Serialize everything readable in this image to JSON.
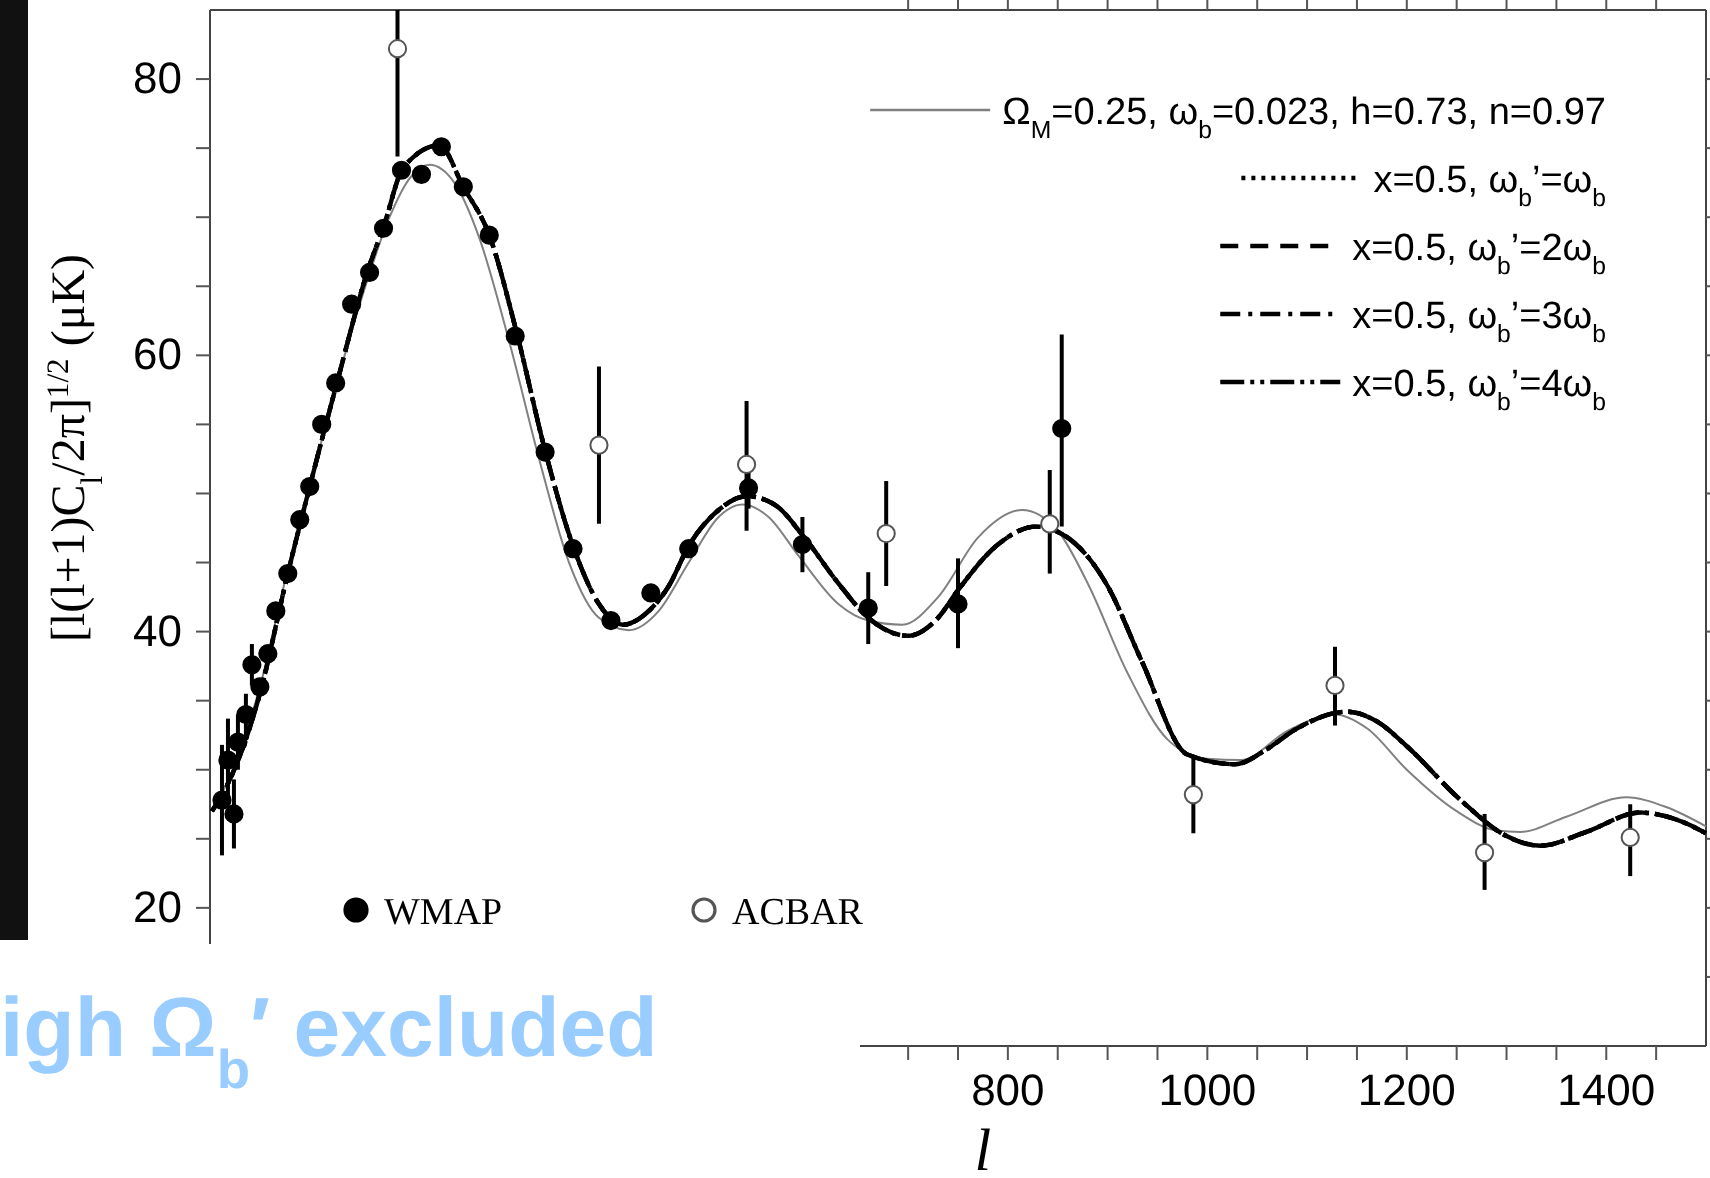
{
  "chart_data": {
    "type": "line",
    "xlabel": "l",
    "ylabel": "[l(l+1)C$_{l}$/2π]$^{1/2}$   (μK)",
    "xlim": [
      0,
      1500
    ],
    "ylim": [
      10,
      85
    ],
    "xticks": [
      {
        "value": 700,
        "label": null
      },
      {
        "value": 750,
        "label": null
      },
      800,
      {
        "value": 850,
        "label": null
      },
      {
        "value": 900,
        "label": null
      },
      {
        "value": 950,
        "label": null
      },
      1000,
      {
        "value": 1050,
        "label": null
      },
      {
        "value": 1100,
        "label": null
      },
      {
        "value": 1150,
        "label": null
      },
      1200,
      {
        "value": 1250,
        "label": null
      },
      {
        "value": 1300,
        "label": null
      },
      {
        "value": 1350,
        "label": null
      },
      1400,
      {
        "value": 1450,
        "label": null
      }
    ],
    "yticks": [
      {
        "value": 15,
        "label": null
      },
      20,
      {
        "value": 25,
        "label": null
      },
      {
        "value": 30,
        "label": null
      },
      {
        "value": 35,
        "label": null
      },
      40,
      {
        "value": 45,
        "label": null
      },
      {
        "value": 50,
        "label": null
      },
      {
        "value": 55,
        "label": null
      },
      60,
      {
        "value": 65,
        "label": null
      },
      {
        "value": 70,
        "label": null
      },
      {
        "value": 75,
        "label": null
      },
      80
    ],
    "grid": false,
    "legend": "top right",
    "annotations": [
      "igh Ω$_{b}$′ excluded"
    ],
    "series": [
      {
        "name": "Ω$_{M}$=0.25, ω$_{b}$=0.023, h=0.73, n=0.97",
        "color": "#808080",
        "line_style": "solid",
        "x": [
          2,
          20,
          50,
          78,
          100,
          128,
          158,
          180,
          200,
          220,
          245,
          270,
          300,
          330,
          360,
          390,
          420,
          450,
          480,
          510,
          534,
          560,
          590,
          630,
          660,
          694,
          730,
          770,
          814,
          850,
          880,
          920,
          960,
          1000,
          1034,
          1080,
          1128,
          1160,
          1200,
          1250,
          1290,
          1314,
          1360,
          1420,
          1460,
          1500
        ],
        "values": [
          27,
          29.5,
          36,
          44.5,
          50.5,
          58.2,
          65.5,
          70,
          72.8,
          73.8,
          72.5,
          68.5,
          61,
          52.5,
          45,
          41,
          40.1,
          41.5,
          45,
          48.3,
          49.2,
          48.3,
          45.5,
          42,
          40.8,
          40.5,
          42.5,
          46.8,
          48.8,
          47.3,
          43.5,
          37,
          32.2,
          30.8,
          30.7,
          32.8,
          34,
          33,
          30,
          27,
          25.6,
          25.5,
          26.6,
          28,
          27.3,
          25.9
        ]
      },
      {
        "name": "x=0.5, ω$_{b}$’=ω$_{b}$",
        "color": "#000000",
        "line_style": "dotted",
        "x": [
          2,
          20,
          50,
          78,
          100,
          128,
          158,
          174,
          194,
          230,
          254,
          280,
          308,
          336,
          364,
          390,
          414,
          440,
          460,
          480,
          510,
          538,
          566,
          594,
          630,
          660,
          700,
          730,
          750,
          790,
          828,
          860,
          900,
          934,
          980,
          1028,
          1060,
          1088,
          1140,
          1170,
          1200,
          1254,
          1300,
          1334,
          1380,
          1434,
          1470,
          1500
        ],
        "values": [
          27,
          29.3,
          35.5,
          44.2,
          50.5,
          58.2,
          66.1,
          69.3,
          73.6,
          75.2,
          72.2,
          68.7,
          61.5,
          53.1,
          46.2,
          42,
          40.5,
          41.5,
          43.3,
          46.2,
          48.8,
          49.8,
          49.2,
          47,
          43.5,
          41,
          39.7,
          41,
          43,
          46.3,
          47.6,
          46.8,
          43.3,
          37.9,
          31.1,
          30.4,
          31.5,
          32.9,
          34.2,
          33.5,
          31.7,
          27.8,
          25.2,
          24.5,
          25.5,
          26.9,
          26.4,
          25.4
        ]
      },
      {
        "name": "x=0.5, ω$_{b}$’=2ω$_{b}$",
        "color": "#000000",
        "line_style": "dashed",
        "x": [
          2,
          20,
          50,
          78,
          100,
          128,
          158,
          174,
          194,
          230,
          254,
          280,
          308,
          336,
          364,
          390,
          414,
          440,
          460,
          480,
          510,
          538,
          566,
          594,
          630,
          660,
          700,
          730,
          750,
          790,
          828,
          860,
          900,
          934,
          980,
          1028,
          1060,
          1088,
          1140,
          1170,
          1200,
          1254,
          1300,
          1334,
          1380,
          1434,
          1470,
          1500
        ],
        "values": [
          27,
          29.3,
          35.5,
          44.2,
          50.5,
          58.2,
          66.1,
          69.3,
          73.6,
          75.2,
          72.2,
          68.7,
          61.5,
          53.1,
          46.2,
          42,
          40.5,
          41.5,
          43.3,
          46.2,
          48.8,
          49.8,
          49.2,
          47,
          43.5,
          41,
          39.7,
          41,
          43,
          46.3,
          47.6,
          46.8,
          43.3,
          37.9,
          31.1,
          30.4,
          31.5,
          32.9,
          34.2,
          33.5,
          31.7,
          27.8,
          25.2,
          24.5,
          25.5,
          26.9,
          26.4,
          25.4
        ]
      },
      {
        "name": "x=0.5, ω$_{b}$’=3ω$_{b}$",
        "color": "#000000",
        "line_style": "dashdot",
        "x": [
          2,
          20,
          50,
          78,
          100,
          128,
          158,
          174,
          194,
          230,
          254,
          280,
          308,
          336,
          364,
          390,
          414,
          440,
          460,
          480,
          510,
          538,
          566,
          594,
          630,
          660,
          700,
          730,
          750,
          790,
          828,
          860,
          900,
          934,
          980,
          1028,
          1060,
          1088,
          1140,
          1170,
          1200,
          1254,
          1300,
          1334,
          1380,
          1434,
          1470,
          1500
        ],
        "values": [
          27,
          29.3,
          35.5,
          44.2,
          50.5,
          58.2,
          66.1,
          69.3,
          73.6,
          75.2,
          72.2,
          68.7,
          61.5,
          53.1,
          46.2,
          42,
          40.5,
          41.5,
          43.3,
          46.2,
          48.8,
          49.8,
          49.2,
          47,
          43.5,
          41,
          39.7,
          41,
          43,
          46.3,
          47.6,
          46.8,
          43.3,
          37.9,
          31.1,
          30.4,
          31.5,
          32.9,
          34.2,
          33.5,
          31.7,
          27.8,
          25.2,
          24.5,
          25.5,
          26.9,
          26.4,
          25.4
        ]
      },
      {
        "name": "x=0.5, ω$_{b}$’=4ω$_{b}$",
        "color": "#000000",
        "line_style": "dashdotdot",
        "x": [
          2,
          20,
          50,
          78,
          100,
          128,
          158,
          174,
          194,
          230,
          254,
          280,
          308,
          336,
          364,
          390,
          414,
          440,
          460,
          480,
          510,
          538,
          566,
          594,
          630,
          660,
          700,
          730,
          750,
          790,
          828,
          860,
          900,
          934,
          980,
          1028,
          1060,
          1088,
          1140,
          1170,
          1200,
          1254,
          1300,
          1334,
          1380,
          1434,
          1470,
          1500
        ],
        "values": [
          27,
          29.3,
          35.5,
          44.2,
          50.5,
          58.2,
          66.1,
          69.3,
          73.6,
          75.2,
          72.2,
          68.7,
          61.5,
          53.1,
          46.2,
          42,
          40.5,
          41.5,
          43.3,
          46.2,
          48.8,
          49.8,
          49.2,
          47,
          43.5,
          41,
          39.7,
          41,
          43,
          46.3,
          47.6,
          46.8,
          43.3,
          37.9,
          31.1,
          30.4,
          31.5,
          32.9,
          34.2,
          33.5,
          31.7,
          27.8,
          25.2,
          24.5,
          25.5,
          26.9,
          26.4,
          25.4
        ]
      },
      {
        "name": "WMAP",
        "type": "scatter",
        "color": "#000000",
        "marker": "circle",
        "x": [
          12,
          18,
          24,
          28,
          36,
          42,
          50,
          58,
          66,
          78,
          90,
          100,
          112,
          126,
          142,
          160,
          174,
          192,
          212,
          232,
          254,
          280,
          306,
          336,
          364,
          402,
          442,
          480,
          540,
          594,
          660,
          750,
          854
        ],
        "values": [
          27.8,
          30.7,
          26.8,
          32,
          34,
          37.6,
          36,
          38.4,
          41.5,
          44.2,
          48.1,
          50.5,
          55,
          58,
          63.7,
          66,
          69.2,
          73.4,
          73.1,
          75.1,
          72.2,
          68.7,
          61.4,
          53,
          46,
          40.8,
          42.8,
          46,
          50.4,
          46.3,
          41.7,
          42,
          54.7
        ],
        "errors": [
          4,
          3,
          2.5,
          2,
          1.5,
          1.5,
          null,
          null,
          null,
          null,
          null,
          null,
          null,
          null,
          null,
          null,
          null,
          null,
          null,
          null,
          null,
          null,
          null,
          null,
          null,
          null,
          null,
          null,
          1.5,
          2,
          2.6,
          [
            38.8,
            45.3
          ],
          [
            47.6,
            61.5
          ]
        ]
      },
      {
        "name": "ACBAR",
        "type": "scatter",
        "color": "#ffffff",
        "marker": "circle",
        "x": [
          188,
          390,
          538,
          678,
          842,
          986,
          1128,
          1278,
          1424
        ],
        "values": [
          82.2,
          53.5,
          52.1,
          47.1,
          47.8,
          28.2,
          36.1,
          24.0,
          25.1
        ],
        "errors": [
          [
            74.4,
            85
          ],
          [
            47.8,
            59.2
          ],
          [
            47.3,
            56.7
          ],
          [
            43.3,
            50.9
          ],
          [
            44.2,
            51.7
          ],
          [
            25.4,
            30.8
          ],
          [
            33.2,
            38.9
          ],
          [
            21.3,
            26.8
          ],
          [
            22.3,
            27.5
          ]
        ]
      }
    ]
  }
}
